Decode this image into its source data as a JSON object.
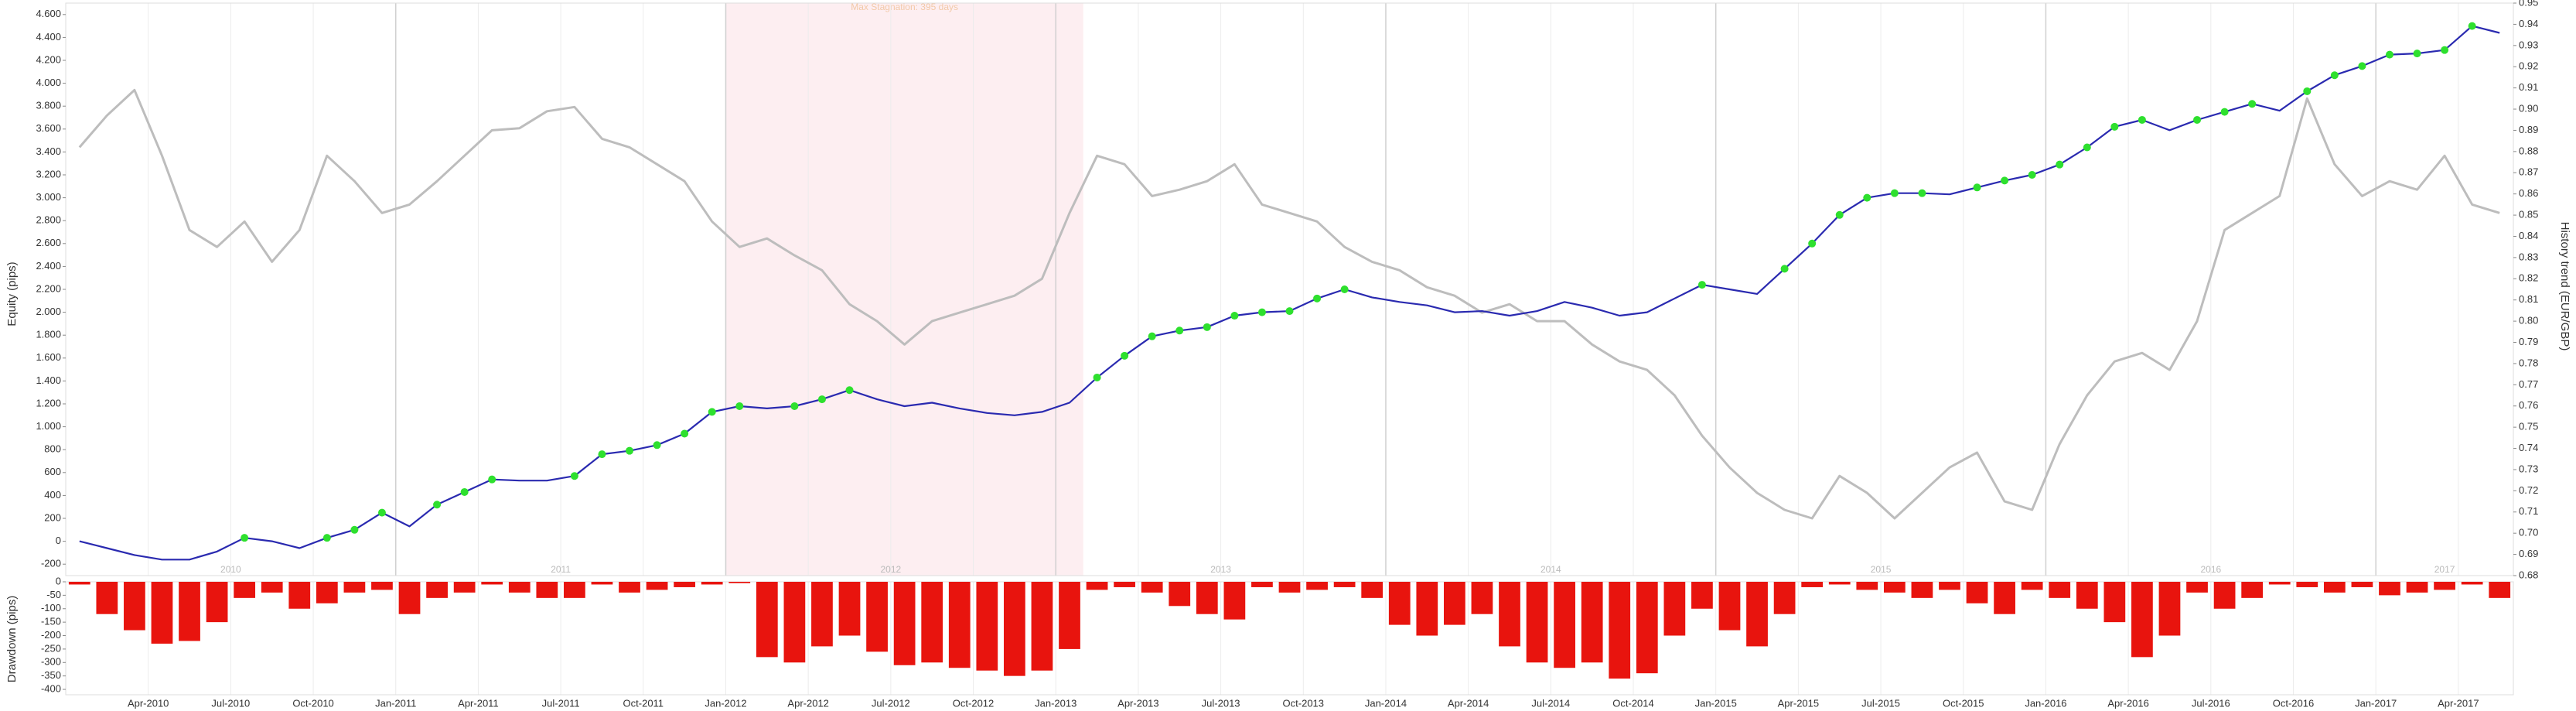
{
  "chart_data": [
    {
      "type": "line",
      "stagnation_label": "Max Stagnation: 395 days",
      "stagnation": [
        "2012-01",
        "2013-02"
      ],
      "ylabel": "Equity (pips)",
      "y2label": "History trend (EUR/GBP)",
      "x": [
        "2010-01",
        "2010-02",
        "2010-03",
        "2010-04",
        "2010-05",
        "2010-06",
        "2010-07",
        "2010-08",
        "2010-09",
        "2010-10",
        "2010-11",
        "2010-12",
        "2011-01",
        "2011-02",
        "2011-03",
        "2011-04",
        "2011-05",
        "2011-06",
        "2011-07",
        "2011-08",
        "2011-09",
        "2011-10",
        "2011-11",
        "2011-12",
        "2012-01",
        "2012-02",
        "2012-03",
        "2012-04",
        "2012-05",
        "2012-06",
        "2012-07",
        "2012-08",
        "2012-09",
        "2012-10",
        "2012-11",
        "2012-12",
        "2013-01",
        "2013-02",
        "2013-03",
        "2013-04",
        "2013-05",
        "2013-06",
        "2013-07",
        "2013-08",
        "2013-09",
        "2013-10",
        "2013-11",
        "2013-12",
        "2014-01",
        "2014-02",
        "2014-03",
        "2014-04",
        "2014-05",
        "2014-06",
        "2014-07",
        "2014-08",
        "2014-09",
        "2014-10",
        "2014-11",
        "2014-12",
        "2015-01",
        "2015-02",
        "2015-03",
        "2015-04",
        "2015-05",
        "2015-06",
        "2015-07",
        "2015-08",
        "2015-09",
        "2015-10",
        "2015-11",
        "2015-12",
        "2016-01",
        "2016-02",
        "2016-03",
        "2016-04",
        "2016-05",
        "2016-06",
        "2016-07",
        "2016-08",
        "2016-09",
        "2016-10",
        "2016-11",
        "2016-12",
        "2017-01",
        "2017-02",
        "2017-03",
        "2017-04",
        "2017-05"
      ],
      "xlim": [
        "2010-01",
        "2017-06"
      ],
      "ylim": [
        -300,
        4700
      ],
      "yticks": [
        -200,
        0,
        200,
        400,
        600,
        800,
        {
          "value": 1000,
          "label": "1.000"
        },
        {
          "value": 1200,
          "label": "1.200"
        },
        {
          "value": 1400,
          "label": "1.400"
        },
        {
          "value": 1600,
          "label": "1.600"
        },
        {
          "value": 1800,
          "label": "1.800"
        },
        {
          "value": 2000,
          "label": "2.000"
        },
        {
          "value": 2200,
          "label": "2.200"
        },
        {
          "value": 2400,
          "label": "2.400"
        },
        {
          "value": 2600,
          "label": "2.600"
        },
        {
          "value": 2800,
          "label": "2.800"
        },
        {
          "value": 3000,
          "label": "3.000"
        },
        {
          "value": 3200,
          "label": "3.200"
        },
        {
          "value": 3400,
          "label": "3.400"
        },
        {
          "value": 3600,
          "label": "3.600"
        },
        {
          "value": 3800,
          "label": "3.800"
        },
        {
          "value": 4000,
          "label": "4.000"
        },
        {
          "value": 4200,
          "label": "4.200"
        },
        {
          "value": 4400,
          "label": "4.400"
        },
        {
          "value": 4600,
          "label": "4.600"
        }
      ],
      "y2lim": [
        0.68,
        0.95
      ],
      "y2ticks": [
        0.68,
        0.69,
        {
          "value": 0.7,
          "label": "0.70"
        },
        0.71,
        0.72,
        0.73,
        0.74,
        0.75,
        0.76,
        0.77,
        0.78,
        0.79,
        {
          "value": 0.8,
          "label": "0.80"
        },
        0.81,
        0.82,
        0.83,
        0.84,
        0.85,
        0.86,
        0.87,
        0.88,
        0.89,
        {
          "value": 0.9,
          "label": "0.90"
        },
        0.91,
        0.92,
        0.93,
        0.94,
        0.95
      ],
      "year_labels": [
        "2010",
        "2011",
        "2012",
        "2013",
        "2014",
        "2015",
        "2016",
        "2017"
      ],
      "highs_color": "#2ee02e",
      "series": [
        {
          "color": "#bdbdbd",
          "axis": "y2",
          "values": [
            0.882,
            0.897,
            0.909,
            0.878,
            0.843,
            0.835,
            0.847,
            0.828,
            0.843,
            0.878,
            0.866,
            0.851,
            0.855,
            0.866,
            0.878,
            0.89,
            0.891,
            0.899,
            0.901,
            0.886,
            0.882,
            0.874,
            0.866,
            0.847,
            0.835,
            0.839,
            0.831,
            0.824,
            0.808,
            0.8,
            0.789,
            0.8,
            0.804,
            0.808,
            0.812,
            0.82,
            0.851,
            0.878,
            0.874,
            0.859,
            0.862,
            0.866,
            0.874,
            0.855,
            0.851,
            0.847,
            0.835,
            0.828,
            0.824,
            0.816,
            0.812,
            0.804,
            0.808,
            0.8,
            0.8,
            0.789,
            0.781,
            0.777,
            0.765,
            0.746,
            0.731,
            0.719,
            0.711,
            0.707,
            0.727,
            0.719,
            0.707,
            0.719,
            0.731,
            0.738,
            0.715,
            0.711,
            0.742,
            0.765,
            0.781,
            0.785,
            0.777,
            0.8,
            0.843,
            0.851,
            0.859,
            0.905,
            0.874,
            0.859,
            0.866,
            0.862,
            0.878,
            0.855,
            0.851
          ]
        },
        {
          "color": "#2a2ab0",
          "values": [
            0,
            -60,
            -120,
            -160,
            -160,
            -90,
            30,
            0,
            -60,
            30,
            100,
            250,
            130,
            320,
            430,
            540,
            530,
            530,
            570,
            760,
            790,
            840,
            940,
            1130,
            1180,
            1160,
            1180,
            1240,
            1320,
            1240,
            1180,
            1210,
            1160,
            1120,
            1100,
            1130,
            1210,
            1430,
            1620,
            1790,
            1840,
            1870,
            1970,
            2000,
            2010,
            2120,
            2200,
            2130,
            2090,
            2060,
            2000,
            2010,
            1970,
            2010,
            2090,
            2040,
            1970,
            2000,
            2120,
            2240,
            2200,
            2160,
            2380,
            2600,
            2850,
            3000,
            3040,
            3040,
            3030,
            3090,
            3150,
            3200,
            3290,
            3440,
            3620,
            3680,
            3590,
            3680,
            3750,
            3820,
            3760,
            3930,
            4070,
            4150,
            4250,
            4260,
            4290,
            4500,
            4440
          ]
        }
      ]
    },
    {
      "type": "bar",
      "ylabel": "Drawdown (pips)",
      "color": "#e8140e",
      "ylim": [
        -420,
        0
      ],
      "yticks": [
        -400,
        -350,
        -300,
        -250,
        -200,
        -150,
        -100,
        -50,
        0
      ],
      "xticks": [
        {
          "value": "2010-04",
          "label": "Apr-2010"
        },
        {
          "value": "2010-07",
          "label": "Jul-2010"
        },
        {
          "value": "2010-10",
          "label": "Oct-2010"
        },
        {
          "value": "2011-01",
          "label": "Jan-2011"
        },
        {
          "value": "2011-04",
          "label": "Apr-2011"
        },
        {
          "value": "2011-07",
          "label": "Jul-2011"
        },
        {
          "value": "2011-10",
          "label": "Oct-2011"
        },
        {
          "value": "2012-01",
          "label": "Jan-2012"
        },
        {
          "value": "2012-04",
          "label": "Apr-2012"
        },
        {
          "value": "2012-07",
          "label": "Jul-2012"
        },
        {
          "value": "2012-10",
          "label": "Oct-2012"
        },
        {
          "value": "2013-01",
          "label": "Jan-2013"
        },
        {
          "value": "2013-04",
          "label": "Apr-2013"
        },
        {
          "value": "2013-07",
          "label": "Jul-2013"
        },
        {
          "value": "2013-10",
          "label": "Oct-2013"
        },
        {
          "value": "2014-01",
          "label": "Jan-2014"
        },
        {
          "value": "2014-04",
          "label": "Apr-2014"
        },
        {
          "value": "2014-07",
          "label": "Jul-2014"
        },
        {
          "value": "2014-10",
          "label": "Oct-2014"
        },
        {
          "value": "2015-01",
          "label": "Jan-2015"
        },
        {
          "value": "2015-04",
          "label": "Apr-2015"
        },
        {
          "value": "2015-07",
          "label": "Jul-2015"
        },
        {
          "value": "2015-10",
          "label": "Oct-2015"
        },
        {
          "value": "2016-01",
          "label": "Jan-2016"
        },
        {
          "value": "2016-04",
          "label": "Apr-2016"
        },
        {
          "value": "2016-07",
          "label": "Jul-2016"
        },
        {
          "value": "2016-10",
          "label": "Oct-2016"
        },
        {
          "value": "2017-01",
          "label": "Jan-2017"
        },
        {
          "value": "2017-04",
          "label": "Apr-2017"
        }
      ],
      "values": [
        -10,
        -120,
        -180,
        -230,
        -220,
        -150,
        -60,
        -40,
        -100,
        -80,
        -40,
        -30,
        -120,
        -60,
        -40,
        -10,
        -40,
        -60,
        -60,
        -10,
        -40,
        -30,
        -20,
        -10,
        -5,
        -280,
        -300,
        -240,
        -200,
        -260,
        -310,
        -300,
        -320,
        -330,
        -350,
        -330,
        -250,
        -30,
        -20,
        -40,
        -90,
        -120,
        -140,
        -20,
        -40,
        -30,
        -20,
        -60,
        -160,
        -200,
        -160,
        -120,
        -240,
        -300,
        -320,
        -300,
        -360,
        -340,
        -200,
        -100,
        -180,
        -240,
        -120,
        -20,
        -10,
        -30,
        -40,
        -60,
        -30,
        -80,
        -120,
        -30,
        -60,
        -100,
        -150,
        -280,
        -200,
        -40,
        -100,
        -60,
        -10,
        -20,
        -40,
        -20,
        -50,
        -40,
        -30,
        -10,
        -60
      ]
    }
  ]
}
